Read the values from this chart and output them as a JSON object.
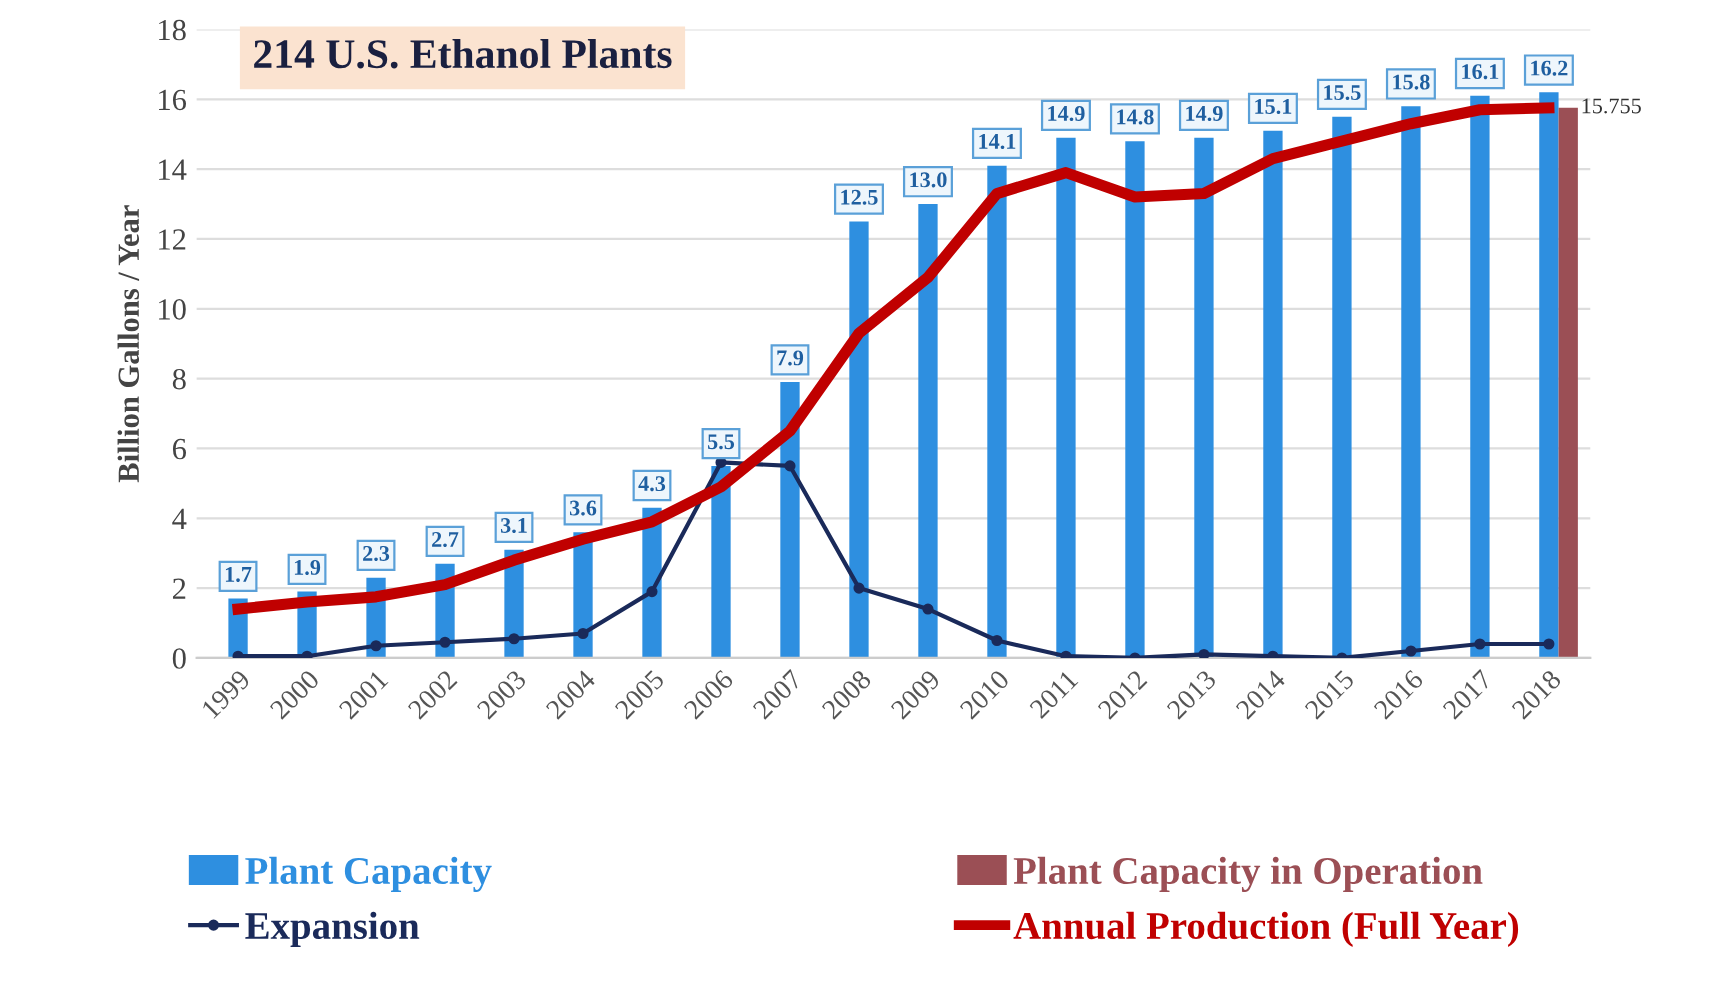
{
  "chart_data": {
    "type": "bar",
    "title": "214 U.S. Ethanol Plants",
    "ylabel": "Billion Gallons / Year",
    "categories": [
      "1999",
      "2000",
      "2001",
      "2002",
      "2003",
      "2004",
      "2005",
      "2006",
      "2007",
      "2008",
      "2009",
      "2010",
      "2011",
      "2012",
      "2013",
      "2014",
      "2015",
      "2016",
      "2017",
      "2018"
    ],
    "series": [
      {
        "name": "Plant Capacity",
        "color": "#2e8fe0",
        "values": [
          1.7,
          1.9,
          2.3,
          2.7,
          3.1,
          3.6,
          4.3,
          5.5,
          7.9,
          12.5,
          13.0,
          14.1,
          14.9,
          14.8,
          14.9,
          15.1,
          15.5,
          15.8,
          16.1,
          16.2
        ],
        "value_labels": [
          "1.7",
          "1.9",
          "2.3",
          "2.7",
          "3.1",
          "3.6",
          "4.3",
          "5.5",
          "7.9",
          "12.5",
          "13.0",
          "14.1",
          "14.9",
          "14.8",
          "14.9",
          "15.1",
          "15.5",
          "15.8",
          "16.1",
          "16.2"
        ]
      },
      {
        "name": "Plant Capacity in Operation",
        "color": "#9b4f55",
        "values": [
          null,
          null,
          null,
          null,
          null,
          null,
          null,
          null,
          null,
          null,
          null,
          null,
          null,
          null,
          null,
          null,
          null,
          null,
          null,
          15.755
        ]
      },
      {
        "name": "Expansion",
        "type": "line",
        "color": "#1a2a5a",
        "marker": "circle",
        "values": [
          0.05,
          0.05,
          0.35,
          0.45,
          0.55,
          0.7,
          1.9,
          5.6,
          5.5,
          2.0,
          1.4,
          0.5,
          0.05,
          0.0,
          0.1,
          0.05,
          0.0,
          0.2,
          0.4,
          0.4
        ]
      },
      {
        "name": "Annual Production (Full Year)",
        "type": "line",
        "color": "#c00000",
        "values": [
          1.4,
          1.6,
          1.75,
          2.1,
          2.8,
          3.4,
          3.9,
          4.9,
          6.5,
          9.3,
          10.9,
          13.3,
          13.9,
          13.2,
          13.3,
          14.3,
          14.8,
          15.3,
          15.7,
          15.755
        ]
      }
    ],
    "annotations": [
      {
        "text": "15.755",
        "x": "2018",
        "y": 15.755
      }
    ],
    "ylim": [
      0,
      18
    ],
    "yticks": [
      0,
      2,
      4,
      6,
      8,
      10,
      12,
      14,
      16,
      18
    ],
    "grid": "y",
    "legend": "bottom"
  }
}
